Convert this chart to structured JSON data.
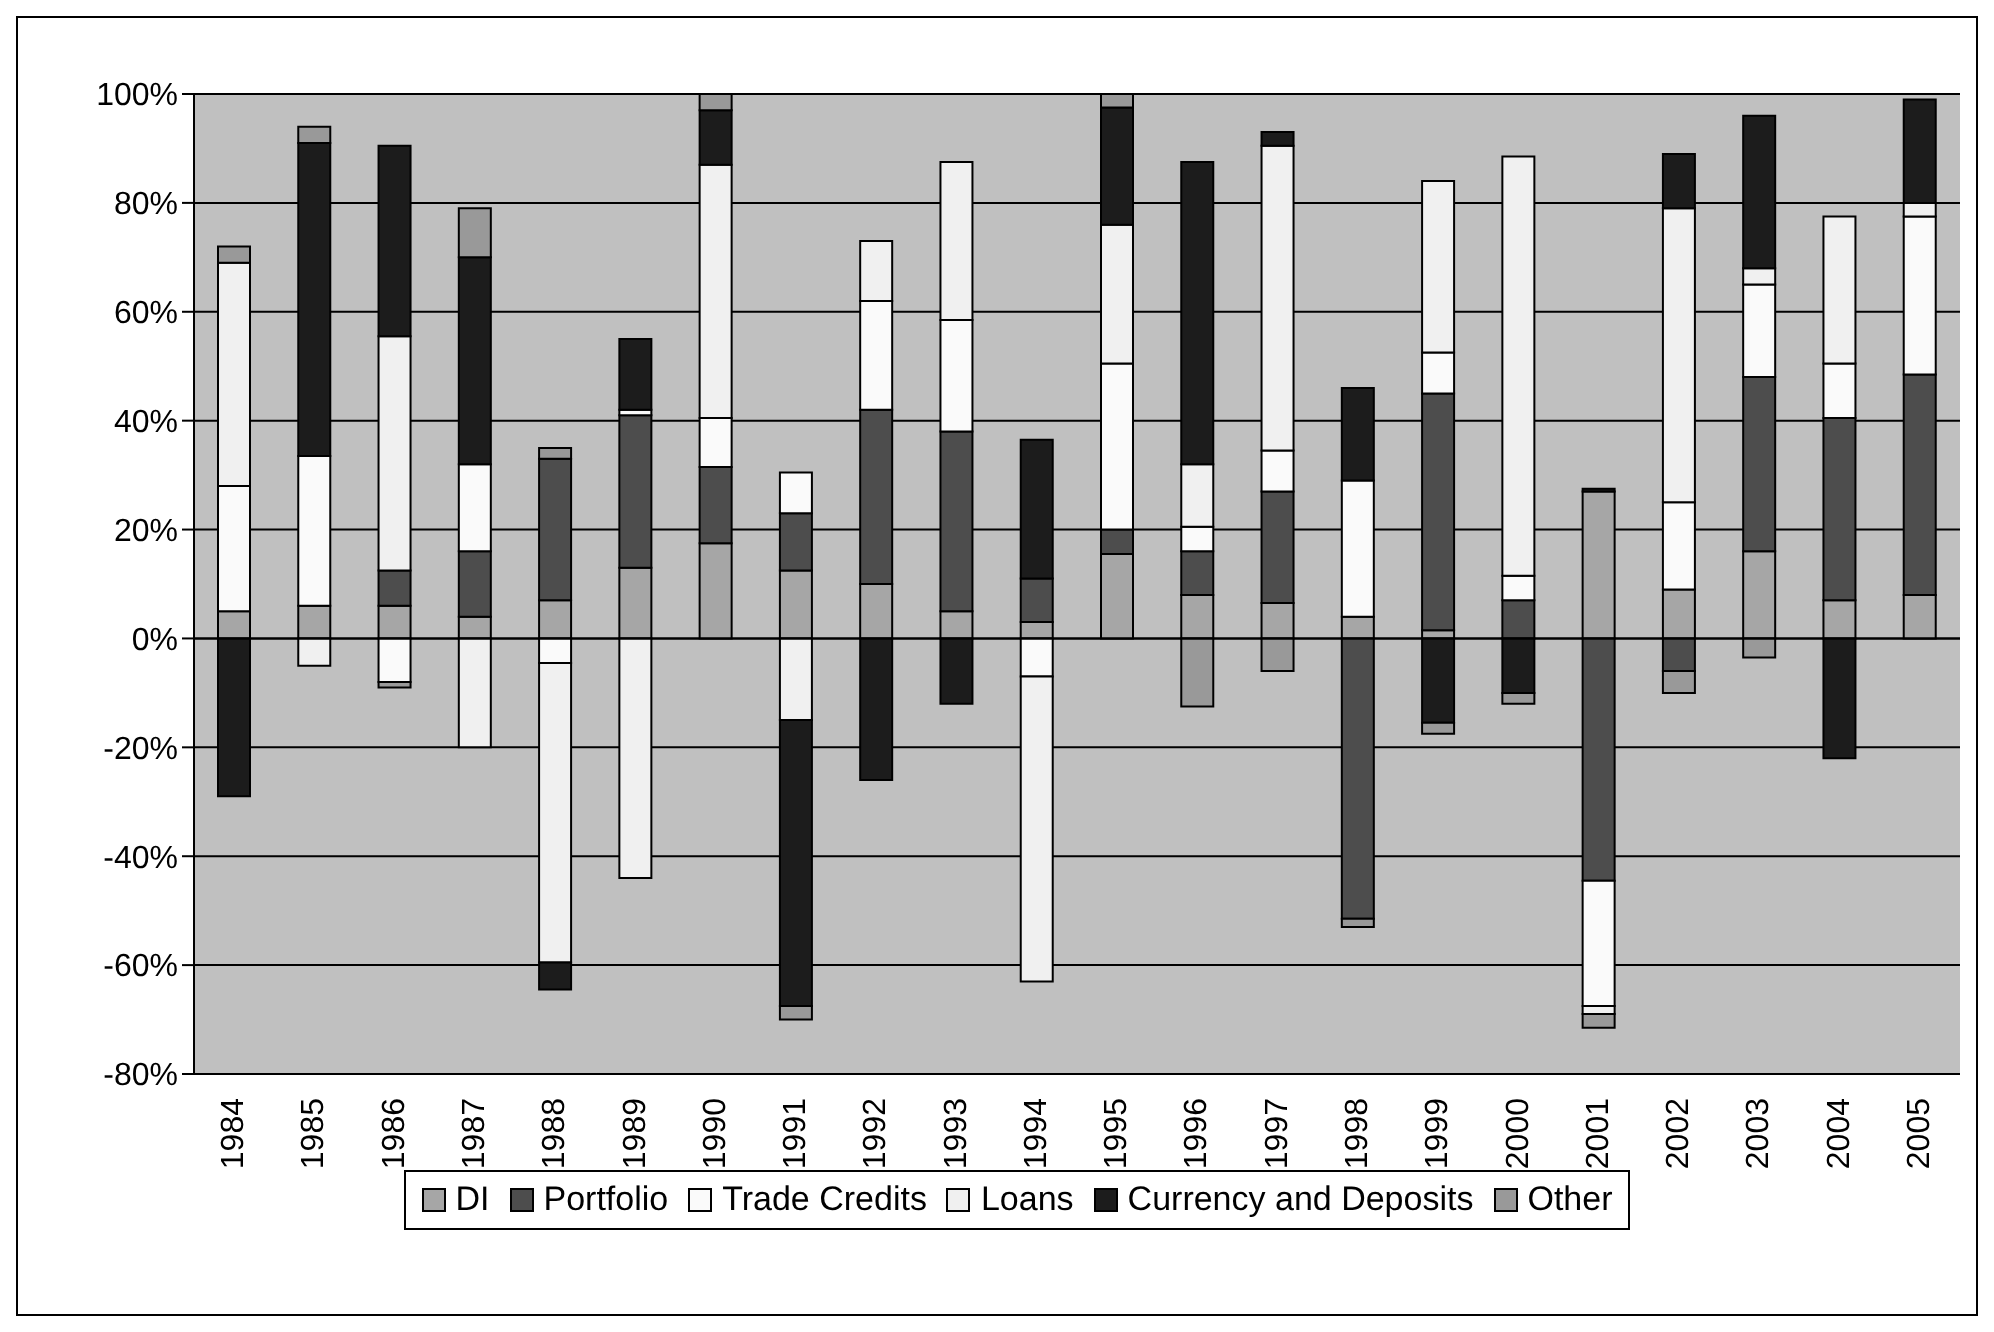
{
  "chart_data": {
    "type": "bar",
    "stacked": true,
    "categories": [
      "1984",
      "1985",
      "1986",
      "1987",
      "1988",
      "1989",
      "1990",
      "1991",
      "1992",
      "1993",
      "1994",
      "1995",
      "1996",
      "1997",
      "1998",
      "1999",
      "2000",
      "2001",
      "2002",
      "2003",
      "2004",
      "2005"
    ],
    "series": [
      {
        "name": "DI",
        "color": "#a6a6a6",
        "values": [
          5,
          6,
          6,
          4,
          7,
          13,
          17.5,
          12.5,
          10,
          5,
          3,
          15.5,
          8,
          6.5,
          4,
          1.5,
          0,
          27,
          9,
          16,
          7,
          8
        ]
      },
      {
        "name": "Portfolio",
        "color": "#4d4d4d",
        "values": [
          0,
          0,
          6.5,
          12,
          26,
          28,
          14,
          10.5,
          32,
          33,
          8,
          4.5,
          8,
          20.5,
          -51.5,
          43.5,
          7,
          -44.5,
          -6,
          32,
          33.5,
          40.5
        ]
      },
      {
        "name": "Trade Credits",
        "color": "#fafafa",
        "values": [
          23,
          27.5,
          -8,
          16,
          -4.5,
          1,
          9,
          7.5,
          20,
          20.5,
          -7,
          30.5,
          4.5,
          7.5,
          25,
          7.5,
          4.5,
          -23,
          16,
          17,
          10,
          29
        ]
      },
      {
        "name": "Loans",
        "color": "#f0f0f0",
        "values": [
          41,
          -5,
          43,
          -20,
          -55,
          -44,
          46.5,
          -15,
          11,
          29,
          -56,
          25.5,
          11.5,
          56,
          0,
          31.5,
          77,
          -1.5,
          54,
          3,
          27,
          2.5
        ]
      },
      {
        "name": "Currency and Deposits",
        "color": "#1c1c1c",
        "values": [
          -29,
          57.5,
          35,
          38,
          -5,
          13,
          10,
          -52.5,
          -26,
          -12,
          25.5,
          21.5,
          55.5,
          2.5,
          17,
          -15.5,
          -10,
          0.5,
          10,
          28,
          -22,
          19
        ]
      },
      {
        "name": "Other",
        "color": "#999999",
        "values": [
          3,
          3,
          -1,
          9,
          2,
          0,
          3.5,
          -2.5,
          0,
          0,
          0,
          2.5,
          -12.5,
          -6,
          -1.5,
          -2,
          -2,
          -2.5,
          -4,
          -3.5,
          0,
          0
        ]
      }
    ],
    "ylim": [
      -80,
      100
    ],
    "yticks": [
      {
        "value": -80,
        "label": "-80%"
      },
      {
        "value": -60,
        "label": "-60%"
      },
      {
        "value": -40,
        "label": "-40%"
      },
      {
        "value": -20,
        "label": "-20%"
      },
      {
        "value": 0,
        "label": "0%"
      },
      {
        "value": 20,
        "label": "20%"
      },
      {
        "value": 40,
        "label": "40%"
      },
      {
        "value": 60,
        "label": "60%"
      },
      {
        "value": 80,
        "label": "80%"
      },
      {
        "value": 100,
        "label": "100%"
      }
    ],
    "grid": "y",
    "legend": "bottom"
  }
}
